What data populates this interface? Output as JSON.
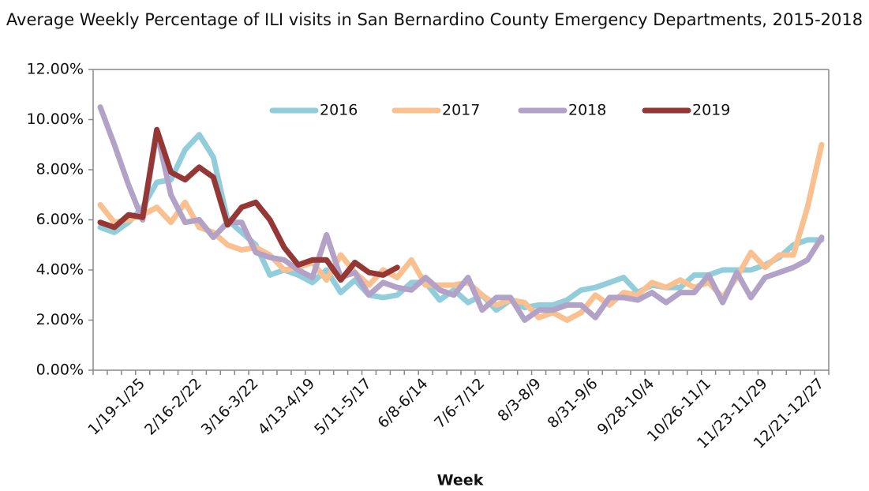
{
  "chart_data": {
    "type": "line",
    "title": "Average Weekly Percentage of ILI visits in San Bernardino County Emergency Departments, 2015-2018",
    "x_label": "Week",
    "categories": [
      null,
      null,
      null,
      "1/19-1/25",
      null,
      null,
      null,
      "2/16-2/22",
      null,
      null,
      null,
      "3/16-3/22",
      null,
      null,
      null,
      "4/13-4/19",
      null,
      null,
      null,
      "5/11-5/17",
      null,
      null,
      null,
      "6/8-6/14",
      null,
      null,
      null,
      "7/6-7/12",
      null,
      null,
      null,
      "8/3-8/9",
      null,
      null,
      null,
      "8/31-9/6",
      null,
      null,
      null,
      "9/28-10/4",
      null,
      null,
      null,
      "10/26-11/1",
      null,
      null,
      null,
      "11/23-11/29",
      null,
      null,
      null,
      "12/21-12/27"
    ],
    "series": [
      {
        "name": "2016",
        "color": "#92cddc",
        "values": [
          5.7,
          5.5,
          5.9,
          6.5,
          7.5,
          7.6,
          8.8,
          9.4,
          8.5,
          6.0,
          5.5,
          5.0,
          3.8,
          4.0,
          3.8,
          3.5,
          4.0,
          3.1,
          3.6,
          3.0,
          2.9,
          3.0,
          3.5,
          3.5,
          2.8,
          3.2,
          2.7,
          3.0,
          2.4,
          2.8,
          2.5,
          2.6,
          2.6,
          2.8,
          3.2,
          3.3,
          3.5,
          3.7,
          3.1,
          3.4,
          3.3,
          3.3,
          3.8,
          3.8,
          4.0,
          4.0,
          4.0,
          4.2,
          4.5,
          5.0,
          5.2,
          5.2
        ]
      },
      {
        "name": "2017",
        "color": "#fac090",
        "values": [
          6.6,
          5.9,
          6.0,
          6.2,
          6.5,
          5.9,
          6.7,
          5.7,
          5.5,
          5.0,
          4.8,
          4.9,
          4.6,
          4.0,
          4.1,
          4.3,
          3.6,
          4.6,
          3.9,
          3.4,
          4.0,
          3.7,
          4.4,
          3.4,
          3.4,
          3.4,
          3.5,
          3.0,
          2.6,
          2.8,
          2.7,
          2.1,
          2.3,
          2.0,
          2.3,
          3.0,
          2.6,
          3.1,
          3.0,
          3.5,
          3.3,
          3.6,
          3.3,
          3.5,
          2.9,
          3.7,
          4.7,
          4.1,
          4.6,
          4.6,
          6.5,
          9.0
        ]
      },
      {
        "name": "2018",
        "color": "#b3a2c7",
        "values": [
          10.5,
          9.0,
          7.4,
          6.0,
          9.5,
          7.0,
          5.9,
          6.0,
          5.3,
          5.9,
          5.9,
          4.7,
          4.5,
          4.4,
          4.0,
          3.7,
          5.4,
          3.7,
          3.9,
          3.0,
          3.5,
          3.3,
          3.2,
          3.7,
          3.2,
          3.0,
          3.7,
          2.4,
          2.9,
          2.9,
          2.0,
          2.4,
          2.4,
          2.6,
          2.6,
          2.1,
          2.9,
          2.9,
          2.8,
          3.1,
          2.7,
          3.1,
          3.1,
          3.8,
          2.7,
          3.9,
          2.9,
          3.7,
          3.9,
          4.1,
          4.4,
          5.3
        ]
      },
      {
        "name": "2019",
        "color": "#953735",
        "values": [
          5.9,
          5.7,
          6.2,
          6.1,
          9.6,
          7.9,
          7.6,
          8.1,
          7.7,
          5.8,
          6.5,
          6.7,
          6.0,
          4.9,
          4.2,
          4.4,
          4.4,
          3.6,
          4.3,
          3.9,
          3.8,
          4.1,
          null,
          null,
          null,
          null,
          null,
          null,
          null,
          null,
          null,
          null,
          null,
          null,
          null,
          null,
          null,
          null,
          null,
          null,
          null,
          null,
          null,
          null,
          null,
          null,
          null,
          null,
          null,
          null,
          null,
          null
        ]
      }
    ],
    "ylim": [
      0,
      12
    ],
    "yticks": [
      {
        "value": 0,
        "label": "0.00%"
      },
      {
        "value": 2,
        "label": "2.00%"
      },
      {
        "value": 4,
        "label": "4.00%"
      },
      {
        "value": 6,
        "label": "6.00%"
      },
      {
        "value": 8,
        "label": "8.00%"
      },
      {
        "value": 10,
        "label": "10.00%"
      },
      {
        "value": 12,
        "label": "12.00%"
      }
    ],
    "grid": false
  }
}
